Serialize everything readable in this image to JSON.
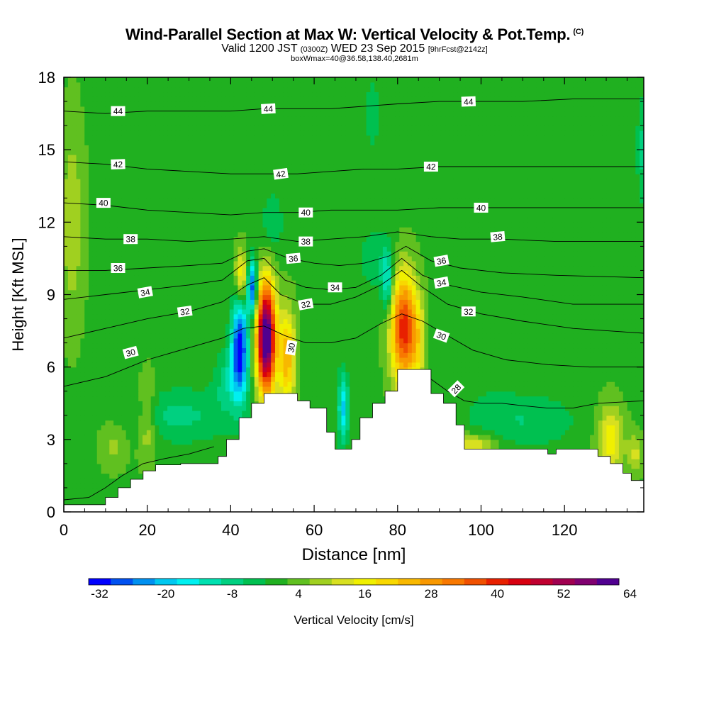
{
  "header": {
    "title": "Wind-Parallel Section at Max W: Vertical Velocity & Pot.Temp.",
    "title_mark": "(C)",
    "valid_prefix": "Valid 1200 JST",
    "valid_utc": "(0300Z)",
    "valid_date": "WED 23 Sep 2015",
    "forecast_info": "[9hrFcst@2142z]",
    "box_info": "boxWmax=40@36.58,138.40,2681m"
  },
  "chart_data": {
    "type": "heatmap",
    "xlabel": "Distance [nm]",
    "ylabel": "Height [Kft MSL]",
    "xlim": [
      0,
      139
    ],
    "ylim": [
      0,
      18
    ],
    "x_ticks": [
      0,
      20,
      40,
      60,
      80,
      100,
      120
    ],
    "y_ticks": [
      0,
      3,
      6,
      9,
      12,
      15,
      18
    ],
    "colorbar": {
      "label": "Vertical Velocity [cm/s]",
      "min": -34,
      "step": 4,
      "tick_labels": [
        "-32",
        "-20",
        "-8",
        "4",
        "16",
        "28",
        "40",
        "52",
        "64"
      ],
      "colors": [
        "#0000ff",
        "#0050f0",
        "#0090f0",
        "#00c8f0",
        "#00f0f0",
        "#00e0b0",
        "#00d080",
        "#00c050",
        "#20b020",
        "#60c020",
        "#a0d020",
        "#d8e020",
        "#f0f000",
        "#f8d800",
        "#f8b800",
        "#f89800",
        "#f87800",
        "#f05000",
        "#e82000",
        "#d80010",
        "#c00030",
        "#a00050",
        "#800070",
        "#500090"
      ]
    },
    "background_value": 1,
    "terrain_kft": [
      [
        0,
        0.3
      ],
      [
        3,
        0.3
      ],
      [
        6,
        0.3
      ],
      [
        10,
        0.6
      ],
      [
        13,
        1.0
      ],
      [
        16,
        1.35
      ],
      [
        19,
        1.7
      ],
      [
        22,
        1.95
      ],
      [
        25,
        1.95
      ],
      [
        28,
        2.0
      ],
      [
        32,
        2.0
      ],
      [
        35,
        2.0
      ],
      [
        37,
        2.3
      ],
      [
        39,
        3.0
      ],
      [
        42,
        3.9
      ],
      [
        45,
        4.5
      ],
      [
        48,
        4.9
      ],
      [
        50,
        4.9
      ],
      [
        53,
        4.9
      ],
      [
        56,
        4.6
      ],
      [
        59,
        4.3
      ],
      [
        61,
        4.3
      ],
      [
        63,
        3.3
      ],
      [
        65,
        2.6
      ],
      [
        67,
        2.6
      ],
      [
        69,
        3.0
      ],
      [
        71,
        3.9
      ],
      [
        74,
        4.5
      ],
      [
        77,
        5.0
      ],
      [
        80,
        5.9
      ],
      [
        83,
        5.9
      ],
      [
        86,
        5.9
      ],
      [
        88,
        4.9
      ],
      [
        91,
        4.5
      ],
      [
        94,
        3.6
      ],
      [
        96,
        2.6
      ],
      [
        100,
        2.6
      ],
      [
        104,
        2.6
      ],
      [
        108,
        2.6
      ],
      [
        112,
        2.6
      ],
      [
        116,
        2.4
      ],
      [
        118,
        2.6
      ],
      [
        122,
        2.6
      ],
      [
        126,
        2.6
      ],
      [
        128,
        2.3
      ],
      [
        131,
        2.0
      ],
      [
        134,
        1.6
      ],
      [
        136,
        1.3
      ],
      [
        139,
        1.3
      ]
    ],
    "velocity_features": [
      {
        "x": 48.5,
        "y": 7.2,
        "sx": 1.6,
        "sy": 1.6,
        "value": 66
      },
      {
        "x": 53.5,
        "y": 6.4,
        "sx": 1.4,
        "sy": 1.4,
        "value": 24
      },
      {
        "x": 42.2,
        "y": 6.9,
        "sx": 1.4,
        "sy": 1.4,
        "value": -33
      },
      {
        "x": 45.2,
        "y": 9.3,
        "sx": 0.8,
        "sy": 0.8,
        "value": -30
      },
      {
        "x": 42.5,
        "y": 9.8,
        "sx": 1.0,
        "sy": 0.8,
        "value": 18
      },
      {
        "x": 40.0,
        "y": 5.5,
        "sx": 2.6,
        "sy": 0.9,
        "value": -10
      },
      {
        "x": 81.5,
        "y": 7.6,
        "sx": 2.2,
        "sy": 1.6,
        "value": 40
      },
      {
        "x": 85.0,
        "y": 7.0,
        "sx": 1.2,
        "sy": 1.2,
        "value": 10
      },
      {
        "x": 77.5,
        "y": 9.5,
        "sx": 0.9,
        "sy": 0.9,
        "value": -16
      },
      {
        "x": 67.0,
        "y": 4.3,
        "sx": 0.9,
        "sy": 1.0,
        "value": -20
      },
      {
        "x": 28.0,
        "y": 4.0,
        "sx": 9.0,
        "sy": 0.8,
        "value": -8
      },
      {
        "x": 110.0,
        "y": 3.8,
        "sx": 9.0,
        "sy": 0.8,
        "value": -7
      },
      {
        "x": 98.0,
        "y": 2.8,
        "sx": 4.0,
        "sy": 0.3,
        "value": 14
      },
      {
        "x": 131.0,
        "y": 3.0,
        "sx": 2.2,
        "sy": 1.0,
        "value": 16
      },
      {
        "x": 137.0,
        "y": 2.4,
        "sx": 1.2,
        "sy": 0.6,
        "value": 10
      },
      {
        "x": 20.0,
        "y": 3.8,
        "sx": 1.5,
        "sy": 1.2,
        "value": 10
      },
      {
        "x": 12.0,
        "y": 2.8,
        "sx": 2.5,
        "sy": 0.7,
        "value": 6
      },
      {
        "x": 50.0,
        "y": 12.0,
        "sx": 2.0,
        "sy": 1.0,
        "value": -6
      },
      {
        "x": 75.0,
        "y": 10.5,
        "sx": 3.0,
        "sy": 1.0,
        "value": -6
      },
      {
        "x": 74.0,
        "y": 16.5,
        "sx": 1.0,
        "sy": 1.0,
        "value": -7
      },
      {
        "x": 138.5,
        "y": 15.0,
        "sx": 0.8,
        "sy": 1.5,
        "value": -8
      },
      {
        "x": 2.0,
        "y": 12.0,
        "sx": 2.0,
        "sy": 3.0,
        "value": 8
      },
      {
        "x": 100.0,
        "y": 7.5,
        "sx": 5.0,
        "sy": 2.0,
        "value": -3
      }
    ],
    "theta_contours": [
      {
        "label": "28",
        "pts": [
          [
            0,
            0.5
          ],
          [
            6,
            0.6
          ],
          [
            10,
            1.0
          ],
          [
            14,
            1.5
          ],
          [
            19,
            2.0
          ],
          [
            24,
            2.2
          ],
          [
            30,
            2.4
          ],
          [
            36,
            2.7
          ]
        ]
      },
      {
        "label": "28",
        "pts": [
          [
            88,
            5.5
          ],
          [
            92,
            5.0
          ],
          [
            96,
            4.6
          ],
          [
            100,
            4.5
          ],
          [
            105,
            4.5
          ],
          [
            110,
            4.4
          ],
          [
            116,
            4.3
          ],
          [
            122,
            4.3
          ],
          [
            128,
            4.5
          ],
          [
            139,
            4.6
          ]
        ]
      },
      {
        "label": "30",
        "pts": [
          [
            0,
            5.2
          ],
          [
            10,
            5.6
          ],
          [
            20,
            6.3
          ],
          [
            30,
            6.8
          ],
          [
            38,
            7.2
          ],
          [
            43,
            7.6
          ],
          [
            48,
            7.7
          ],
          [
            53,
            7.3
          ],
          [
            58,
            7.0
          ],
          [
            64,
            7.0
          ],
          [
            70,
            7.2
          ],
          [
            76,
            7.8
          ],
          [
            81,
            8.2
          ],
          [
            86,
            7.9
          ],
          [
            92,
            7.3
          ],
          [
            98,
            6.7
          ],
          [
            106,
            6.3
          ],
          [
            116,
            6.1
          ],
          [
            126,
            6.0
          ],
          [
            139,
            6.0
          ]
        ]
      },
      {
        "label": "32",
        "pts": [
          [
            0,
            7.2
          ],
          [
            10,
            7.6
          ],
          [
            20,
            8.0
          ],
          [
            30,
            8.3
          ],
          [
            38,
            8.7
          ],
          [
            44,
            9.4
          ],
          [
            48,
            9.7
          ],
          [
            52,
            9.0
          ],
          [
            58,
            8.6
          ],
          [
            64,
            8.6
          ],
          [
            70,
            8.9
          ],
          [
            76,
            9.4
          ],
          [
            81,
            10.0
          ],
          [
            86,
            9.3
          ],
          [
            92,
            8.6
          ],
          [
            100,
            8.2
          ],
          [
            110,
            7.9
          ],
          [
            122,
            7.6
          ],
          [
            139,
            7.4
          ]
        ]
      },
      {
        "label": "34",
        "pts": [
          [
            0,
            8.8
          ],
          [
            10,
            9.0
          ],
          [
            20,
            9.2
          ],
          [
            30,
            9.4
          ],
          [
            38,
            9.6
          ],
          [
            44,
            10.4
          ],
          [
            48,
            10.5
          ],
          [
            53,
            9.6
          ],
          [
            58,
            9.3
          ],
          [
            64,
            9.2
          ],
          [
            70,
            9.3
          ],
          [
            76,
            9.8
          ],
          [
            81,
            10.5
          ],
          [
            86,
            9.8
          ],
          [
            92,
            9.4
          ],
          [
            100,
            9.1
          ],
          [
            110,
            8.9
          ],
          [
            122,
            8.6
          ],
          [
            139,
            8.6
          ]
        ]
      },
      {
        "label": "36",
        "pts": [
          [
            0,
            10.0
          ],
          [
            10,
            10.0
          ],
          [
            20,
            10.1
          ],
          [
            30,
            10.2
          ],
          [
            38,
            10.3
          ],
          [
            44,
            10.8
          ],
          [
            48,
            10.9
          ],
          [
            54,
            10.5
          ],
          [
            60,
            10.3
          ],
          [
            66,
            10.2
          ],
          [
            72,
            10.3
          ],
          [
            78,
            10.6
          ],
          [
            82,
            11.0
          ],
          [
            88,
            10.4
          ],
          [
            95,
            10.1
          ],
          [
            105,
            9.9
          ],
          [
            118,
            9.8
          ],
          [
            139,
            9.7
          ]
        ]
      },
      {
        "label": "38",
        "pts": [
          [
            0,
            11.4
          ],
          [
            10,
            11.3
          ],
          [
            20,
            11.3
          ],
          [
            30,
            11.2
          ],
          [
            40,
            11.3
          ],
          [
            48,
            11.4
          ],
          [
            56,
            11.2
          ],
          [
            64,
            11.3
          ],
          [
            72,
            11.4
          ],
          [
            80,
            11.6
          ],
          [
            88,
            11.4
          ],
          [
            95,
            11.3
          ],
          [
            105,
            11.3
          ],
          [
            118,
            11.2
          ],
          [
            139,
            11.2
          ]
        ]
      },
      {
        "label": "40",
        "pts": [
          [
            0,
            12.8
          ],
          [
            10,
            12.7
          ],
          [
            20,
            12.5
          ],
          [
            30,
            12.4
          ],
          [
            40,
            12.3
          ],
          [
            48,
            12.4
          ],
          [
            56,
            12.4
          ],
          [
            64,
            12.5
          ],
          [
            72,
            12.5
          ],
          [
            80,
            12.5
          ],
          [
            90,
            12.6
          ],
          [
            100,
            12.6
          ],
          [
            110,
            12.6
          ],
          [
            122,
            12.6
          ],
          [
            139,
            12.6
          ]
        ]
      },
      {
        "label": "42",
        "pts": [
          [
            0,
            14.5
          ],
          [
            10,
            14.4
          ],
          [
            20,
            14.2
          ],
          [
            30,
            14.1
          ],
          [
            40,
            14.0
          ],
          [
            48,
            14.0
          ],
          [
            56,
            14.0
          ],
          [
            64,
            14.1
          ],
          [
            72,
            14.2
          ],
          [
            80,
            14.2
          ],
          [
            90,
            14.3
          ],
          [
            100,
            14.3
          ],
          [
            110,
            14.3
          ],
          [
            122,
            14.3
          ],
          [
            139,
            14.3
          ]
        ]
      },
      {
        "label": "44",
        "pts": [
          [
            0,
            16.6
          ],
          [
            10,
            16.5
          ],
          [
            20,
            16.6
          ],
          [
            30,
            16.6
          ],
          [
            40,
            16.6
          ],
          [
            48,
            16.7
          ],
          [
            56,
            16.7
          ],
          [
            64,
            16.7
          ],
          [
            72,
            16.8
          ],
          [
            80,
            16.9
          ],
          [
            90,
            17.0
          ],
          [
            100,
            17.0
          ],
          [
            110,
            17.0
          ],
          [
            122,
            17.1
          ],
          [
            139,
            17.1
          ]
        ]
      }
    ],
    "theta_labels": [
      {
        "text": "44",
        "x": 13,
        "y": 16.6,
        "angle": 0
      },
      {
        "text": "44",
        "x": 49,
        "y": 16.7,
        "angle": -3
      },
      {
        "text": "44",
        "x": 97,
        "y": 17.0,
        "angle": -2
      },
      {
        "text": "42",
        "x": 13,
        "y": 14.4,
        "angle": -2
      },
      {
        "text": "42",
        "x": 52,
        "y": 14.0,
        "angle": -8
      },
      {
        "text": "42",
        "x": 88,
        "y": 14.3,
        "angle": 0
      },
      {
        "text": "40",
        "x": 9.5,
        "y": 12.8,
        "angle": 0
      },
      {
        "text": "40",
        "x": 58,
        "y": 12.4,
        "angle": 0
      },
      {
        "text": "40",
        "x": 100,
        "y": 12.6,
        "angle": 0
      },
      {
        "text": "38",
        "x": 16,
        "y": 11.3,
        "angle": 0
      },
      {
        "text": "38",
        "x": 58,
        "y": 11.2,
        "angle": 0
      },
      {
        "text": "38",
        "x": 104,
        "y": 11.4,
        "angle": -5
      },
      {
        "text": "36",
        "x": 13,
        "y": 10.1,
        "angle": 0
      },
      {
        "text": "36",
        "x": 55,
        "y": 10.5,
        "angle": -5
      },
      {
        "text": "36",
        "x": 90.5,
        "y": 10.4,
        "angle": -10
      },
      {
        "text": "34",
        "x": 19.5,
        "y": 9.1,
        "angle": -10
      },
      {
        "text": "34",
        "x": 65,
        "y": 9.3,
        "angle": 0
      },
      {
        "text": "34",
        "x": 90.5,
        "y": 9.5,
        "angle": -10
      },
      {
        "text": "32",
        "x": 29,
        "y": 8.3,
        "angle": -8
      },
      {
        "text": "32",
        "x": 58,
        "y": 8.6,
        "angle": -10
      },
      {
        "text": "32",
        "x": 97,
        "y": 8.3,
        "angle": 0
      },
      {
        "text": "30",
        "x": 16,
        "y": 6.6,
        "angle": -15
      },
      {
        "text": "30",
        "x": 54.5,
        "y": 6.8,
        "angle": -80
      },
      {
        "text": "30",
        "x": 90.5,
        "y": 7.3,
        "angle": 20
      },
      {
        "text": "28",
        "x": 94,
        "y": 5.1,
        "angle": -45
      }
    ]
  }
}
